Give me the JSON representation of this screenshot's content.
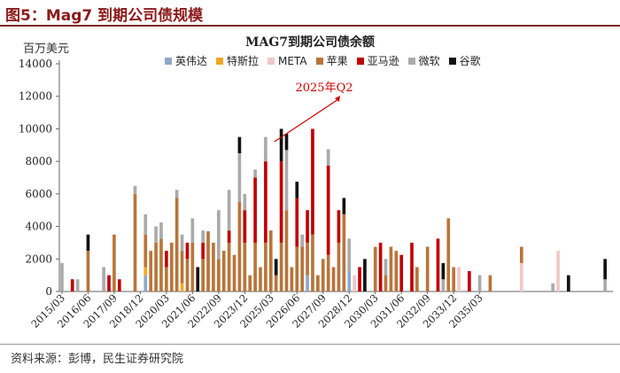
{
  "header": {
    "title": "图5：Mag7 到期公司债规模"
  },
  "source": "资料来源：彭博，民生证券研究院",
  "colors": {
    "英伟达": "#8fa8c8",
    "特斯拉": "#f5a623",
    "META": "#f0c8c8",
    "苹果": "#b8753a",
    "亚马逊": "#c00000",
    "微软": "#aaaaaa",
    "谷歌": "#111111"
  },
  "chart_data": {
    "type": "bar",
    "stacked": true,
    "title": "MAG7到期公司债余额",
    "ylabel": "百万美元",
    "ylim": [
      0,
      14000
    ],
    "yticks": [
      0,
      2000,
      4000,
      6000,
      8000,
      10000,
      12000,
      14000
    ],
    "xtick_labels": [
      "2015/03",
      "2016/06",
      "2017/09",
      "2018/12",
      "2020/03",
      "2021/06",
      "2022/09",
      "2023/12",
      "2025/03",
      "2026/06",
      "2027/09",
      "2028/12",
      "2030/03",
      "2031/06",
      "2032/09",
      "2033/12",
      "2035/03"
    ],
    "legend": [
      "英伟达",
      "特斯拉",
      "META",
      "苹果",
      "亚马逊",
      "微软",
      "谷歌"
    ],
    "annotation": {
      "text": "2025年Q2",
      "quarter_index": 41
    },
    "series": [
      {
        "name": "英伟达",
        "values": [
          0,
          0,
          0,
          0,
          0,
          0,
          0,
          0,
          0,
          0,
          0,
          0,
          0,
          0,
          0,
          0,
          1000,
          0,
          0,
          0,
          0,
          0,
          0,
          0,
          0,
          0,
          0,
          0,
          0,
          0,
          0,
          0,
          0,
          0,
          0,
          0,
          0,
          0,
          0,
          0,
          0,
          0,
          0,
          0,
          0,
          0,
          0,
          1000,
          0,
          0,
          0,
          0,
          0,
          0,
          0,
          1250,
          0,
          0,
          0,
          0,
          0,
          0,
          0,
          0,
          0,
          0,
          0,
          0,
          0,
          0,
          0,
          0,
          0,
          0,
          0,
          0,
          0,
          0,
          0,
          0,
          0,
          0,
          0,
          0,
          0,
          0,
          0,
          0,
          0,
          0,
          0,
          0,
          0,
          0,
          0,
          0,
          0,
          0,
          0,
          0,
          0,
          0,
          0,
          0,
          0,
          0
        ]
      },
      {
        "name": "特斯拉",
        "values": [
          0,
          0,
          0,
          0,
          0,
          0,
          0,
          0,
          0,
          0,
          0,
          0,
          0,
          0,
          0,
          0,
          500,
          0,
          0,
          0,
          0,
          0,
          0,
          500,
          0,
          0,
          0,
          0,
          0,
          0,
          0,
          0,
          0,
          0,
          0,
          0,
          0,
          0,
          0,
          0,
          0,
          0,
          0,
          0,
          0,
          0,
          0,
          0,
          0,
          0,
          0,
          0,
          0,
          0,
          0,
          0,
          0,
          0,
          0,
          0,
          0,
          0,
          0,
          0,
          0,
          0,
          0,
          0,
          0,
          0,
          0,
          0,
          0,
          0,
          0,
          0,
          0,
          0,
          0,
          0,
          0,
          0,
          0,
          0,
          0,
          0,
          0,
          0,
          0,
          0,
          0,
          0,
          0,
          0,
          0,
          0,
          0,
          0,
          0,
          0,
          0,
          0,
          0,
          0,
          0,
          0,
          0
        ]
      },
      {
        "name": "META",
        "values": [
          0,
          0,
          0,
          0,
          0,
          0,
          0,
          0,
          0,
          0,
          0,
          0,
          0,
          0,
          0,
          0,
          0,
          0,
          0,
          0,
          0,
          0,
          0,
          0,
          0,
          0,
          0,
          0,
          0,
          0,
          0,
          0,
          0,
          0,
          0,
          0,
          0,
          0,
          0,
          0,
          0,
          0,
          0,
          0,
          0,
          0,
          0,
          0,
          0,
          0,
          0,
          0,
          0,
          0,
          0,
          0,
          1000,
          0,
          0,
          0,
          0,
          0,
          0,
          0,
          0,
          0,
          0,
          0,
          0,
          0,
          0,
          0,
          0,
          0,
          0,
          0,
          1500,
          0,
          0,
          0,
          0,
          0,
          0,
          0,
          0,
          0,
          0,
          0,
          1750,
          0,
          0,
          0,
          0,
          0,
          0,
          2500,
          0,
          0,
          0,
          0,
          0,
          0,
          0,
          0,
          0,
          0
        ]
      },
      {
        "name": "苹果",
        "values": [
          0,
          0,
          0,
          0,
          0,
          2500,
          0,
          0,
          0,
          0,
          3500,
          0,
          0,
          0,
          6000,
          0,
          2000,
          2500,
          3000,
          3250,
          1500,
          3000,
          5750,
          2000,
          2000,
          3000,
          0,
          2000,
          3700,
          3000,
          2000,
          2500,
          3000,
          2250,
          5500,
          3000,
          1000,
          3000,
          1500,
          3000,
          3750,
          1000,
          3000,
          5000,
          1500,
          2750,
          2750,
          2000,
          3500,
          1000,
          2000,
          2250,
          1500,
          3000,
          4750,
          0,
          0,
          0,
          0,
          0,
          2750,
          0,
          1000,
          2750,
          2500,
          0,
          0,
          0,
          1500,
          0,
          2750,
          0,
          0,
          0,
          4500,
          1500,
          0,
          0,
          0,
          0,
          0,
          0,
          1000,
          0,
          0,
          0,
          0,
          0,
          1000,
          0,
          0,
          0,
          0,
          0,
          0,
          0,
          0,
          0,
          0,
          0,
          0,
          0,
          0,
          0
        ]
      },
      {
        "name": "亚马逊",
        "values": [
          0,
          0,
          750,
          0,
          0,
          0,
          0,
          0,
          0,
          1000,
          0,
          750,
          0,
          0,
          0,
          0,
          0,
          0,
          0,
          0,
          1000,
          0,
          0,
          0,
          1000,
          0,
          0,
          1000,
          0,
          0,
          0,
          0,
          750,
          0,
          0,
          2000,
          0,
          4000,
          0,
          5000,
          0,
          0,
          5000,
          0,
          0,
          3000,
          0,
          2000,
          6500,
          0,
          0,
          5500,
          0,
          2000,
          0,
          0,
          0,
          1500,
          0,
          0,
          0,
          3000,
          0,
          0,
          0,
          2250,
          0,
          3000,
          0,
          0,
          0,
          0,
          3250,
          0,
          0,
          0,
          0,
          0,
          1250,
          0,
          0,
          0,
          0,
          0,
          0,
          0,
          0,
          0,
          0,
          0,
          0,
          0,
          0,
          0,
          0,
          0,
          0,
          0,
          0,
          0,
          0,
          0,
          0,
          0,
          0,
          0
        ]
      },
      {
        "name": "微软",
        "values": [
          1750,
          0,
          0,
          750,
          0,
          0,
          0,
          0,
          1500,
          0,
          0,
          0,
          0,
          0,
          500,
          0,
          1250,
          0,
          1000,
          1000,
          0,
          0,
          500,
          1000,
          0,
          1500,
          0,
          750,
          0,
          0,
          3000,
          0,
          2500,
          0,
          3000,
          1000,
          0,
          500,
          0,
          1500,
          0,
          0,
          0,
          3700,
          0,
          0,
          750,
          0,
          0,
          0,
          0,
          1000,
          0,
          0,
          0,
          2000,
          0,
          0,
          0,
          0,
          0,
          0,
          1000,
          0,
          0,
          0,
          0,
          0,
          0,
          0,
          0,
          0,
          0,
          750,
          0,
          0,
          0,
          0,
          0,
          0,
          1000,
          0,
          0,
          0,
          0,
          0,
          0,
          0,
          0,
          0,
          0,
          0,
          0,
          0,
          500,
          0,
          0,
          0,
          0,
          0,
          0,
          0,
          0,
          0,
          750
        ]
      },
      {
        "name": "谷歌",
        "values": [
          0,
          0,
          0,
          0,
          0,
          1000,
          0,
          0,
          0,
          0,
          0,
          0,
          0,
          0,
          0,
          0,
          0,
          0,
          0,
          0,
          0,
          0,
          0,
          0,
          0,
          0,
          1500,
          0,
          0,
          0,
          0,
          0,
          0,
          0,
          1000,
          0,
          0,
          0,
          0,
          0,
          0,
          1000,
          2000,
          1000,
          0,
          1000,
          0,
          0,
          0,
          0,
          0,
          0,
          0,
          0,
          1000,
          0,
          0,
          0,
          2000,
          0,
          0,
          0,
          0,
          0,
          0,
          0,
          0,
          0,
          0,
          0,
          0,
          0,
          0,
          1000,
          0,
          0,
          0,
          0,
          0,
          0,
          0,
          0,
          0,
          0,
          0,
          0,
          0,
          0,
          0,
          0,
          0,
          0,
          0,
          0,
          0,
          0,
          0,
          1000,
          0,
          0,
          0,
          0,
          0,
          0,
          1250,
          0
        ]
      }
    ]
  }
}
